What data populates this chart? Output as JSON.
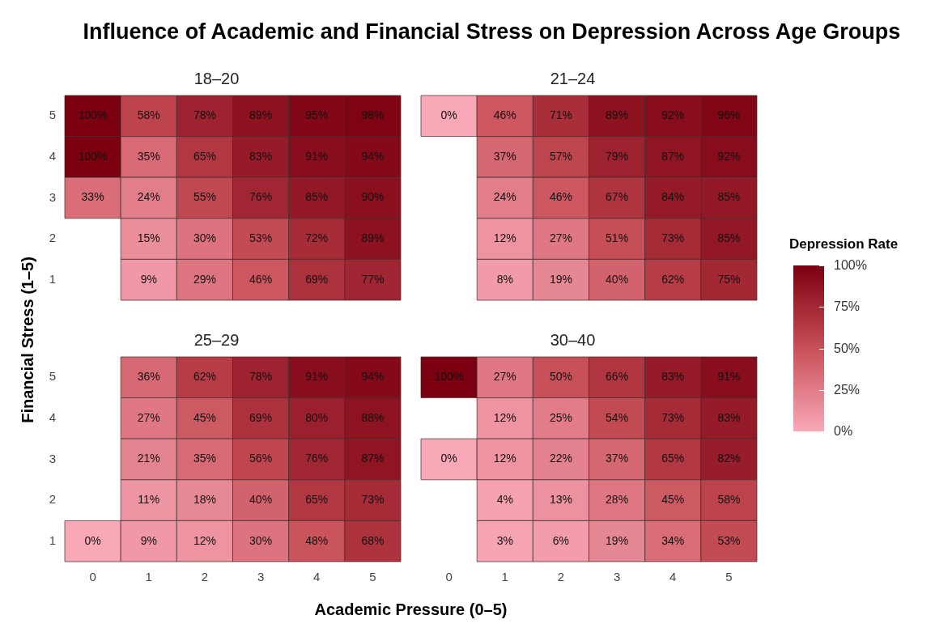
{
  "chart_data": [
    {
      "type": "heatmap",
      "title": "Influence of Academic and Financial Stress on Depression Across Age Groups",
      "subtitle": "18–20",
      "xlabel": "Academic Pressure (0–5)",
      "ylabel": "Financial Stress (1–5)",
      "clabel": "Depression Rate",
      "clim": [
        0,
        100
      ],
      "cticks": [
        {
          "value": 0,
          "label": "0%"
        },
        {
          "value": 25,
          "label": "25%"
        },
        {
          "value": 50,
          "label": "50%"
        },
        {
          "value": 75,
          "label": "75%"
        },
        {
          "value": 100,
          "label": "100%"
        }
      ],
      "tick_labels": "y",
      "categories": [
        "0",
        "1",
        "2",
        "3",
        "4",
        "5"
      ],
      "y_categories": [
        "5",
        "4",
        "3",
        "2",
        "1"
      ],
      "cells": [
        [
          100,
          58,
          78,
          89,
          95,
          98
        ],
        [
          100,
          35,
          65,
          83,
          91,
          94
        ],
        [
          33,
          24,
          55,
          76,
          85,
          90
        ],
        [
          null,
          15,
          30,
          53,
          72,
          89
        ],
        [
          null,
          9,
          29,
          46,
          69,
          77
        ]
      ],
      "cell_labels": [
        [
          "100%",
          "58%",
          "78%",
          "89%",
          "95%",
          "98%"
        ],
        [
          "100%",
          "35%",
          "65%",
          "83%",
          "91%",
          "94%"
        ],
        [
          "33%",
          "24%",
          "55%",
          "76%",
          "85%",
          "90%"
        ],
        [
          null,
          "15%",
          "30%",
          "53%",
          "72%",
          "89%"
        ],
        [
          null,
          "9%",
          "29%",
          "46%",
          "69%",
          "77%"
        ]
      ]
    },
    {
      "type": "heatmap",
      "subtitle": "21–24",
      "tick_labels": false,
      "categories": [
        "0",
        "1",
        "2",
        "3",
        "4",
        "5"
      ],
      "y_categories": [
        "5",
        "4",
        "3",
        "2",
        "1"
      ],
      "cells": [
        [
          0,
          46,
          71,
          89,
          92,
          96
        ],
        [
          null,
          37,
          57,
          79,
          87,
          92
        ],
        [
          null,
          24,
          46,
          67,
          84,
          85
        ],
        [
          null,
          12,
          27,
          51,
          73,
          85
        ],
        [
          null,
          8,
          19,
          40,
          62,
          75
        ]
      ],
      "cell_labels": [
        [
          "0%",
          "46%",
          "71%",
          "89%",
          "92%",
          "96%"
        ],
        [
          null,
          "37%",
          "57%",
          "79%",
          "87%",
          "92%"
        ],
        [
          null,
          "24%",
          "46%",
          "67%",
          "84%",
          "85%"
        ],
        [
          null,
          "12%",
          "27%",
          "51%",
          "73%",
          "85%"
        ],
        [
          null,
          "8%",
          "19%",
          "40%",
          "62%",
          "75%"
        ]
      ]
    },
    {
      "type": "heatmap",
      "subtitle": "25–29",
      "categories": [
        "0",
        "1",
        "2",
        "3",
        "4",
        "5"
      ],
      "y_categories": [
        "5",
        "4",
        "3",
        "2",
        "1"
      ],
      "cells": [
        [
          null,
          36,
          62,
          78,
          91,
          94
        ],
        [
          null,
          27,
          45,
          69,
          80,
          88
        ],
        [
          null,
          21,
          35,
          56,
          76,
          87
        ],
        [
          null,
          11,
          18,
          40,
          65,
          73
        ],
        [
          0,
          9,
          12,
          30,
          48,
          68
        ]
      ],
      "cell_labels": [
        [
          null,
          "36%",
          "62%",
          "78%",
          "91%",
          "94%"
        ],
        [
          null,
          "27%",
          "45%",
          "69%",
          "80%",
          "88%"
        ],
        [
          null,
          "21%",
          "35%",
          "56%",
          "76%",
          "87%"
        ],
        [
          null,
          "11%",
          "18%",
          "40%",
          "65%",
          "73%"
        ],
        [
          "0%",
          "9%",
          "12%",
          "30%",
          "48%",
          "68%"
        ]
      ]
    },
    {
      "type": "heatmap",
      "subtitle": "30–40",
      "tick_labels": "x",
      "categories": [
        "0",
        "1",
        "2",
        "3",
        "4",
        "5"
      ],
      "y_categories": [
        "5",
        "4",
        "3",
        "2",
        "1"
      ],
      "cells": [
        [
          100,
          27,
          50,
          66,
          83,
          91
        ],
        [
          null,
          12,
          25,
          54,
          73,
          83
        ],
        [
          0,
          12,
          22,
          37,
          65,
          82
        ],
        [
          null,
          4,
          13,
          28,
          45,
          58
        ],
        [
          null,
          3,
          6,
          19,
          34,
          53
        ]
      ],
      "cell_labels": [
        [
          "100%",
          "27%",
          "50%",
          "66%",
          "83%",
          "91%"
        ],
        [
          null,
          "12%",
          "25%",
          "54%",
          "73%",
          "83%"
        ],
        [
          "0%",
          "12%",
          "22%",
          "37%",
          "65%",
          "82%"
        ],
        [
          null,
          "4%",
          "13%",
          "28%",
          "45%",
          "58%"
        ],
        [
          null,
          "3%",
          "6%",
          "19%",
          "34%",
          "53%"
        ]
      ]
    }
  ]
}
